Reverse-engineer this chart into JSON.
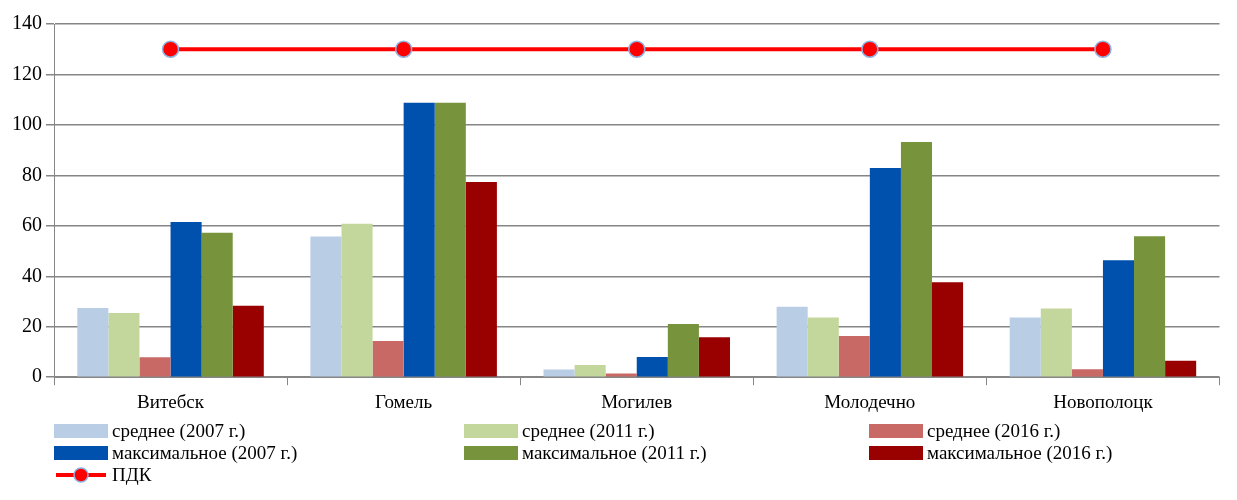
{
  "chart_data": {
    "type": "bar",
    "categories": [
      "Витебск",
      "Гомель",
      "Могилев",
      "Молодечно",
      "Новополоцк"
    ],
    "series": [
      {
        "name": "среднее (2007 г.)",
        "color": "#b9cde5",
        "values": [
          27.4,
          55.8,
          3.1,
          27.9,
          23.7
        ]
      },
      {
        "name": "среднее (2011 г.)",
        "color": "#c3d69b",
        "values": [
          25.4,
          60.8,
          4.8,
          23.7,
          27.2
        ]
      },
      {
        "name": "среднее (2016 г.)",
        "color": "#c96966",
        "values": [
          7.9,
          14.3,
          1.5,
          16.3,
          3.2
        ]
      },
      {
        "name": "максимальное (2007 г.)",
        "color": "#0050ae",
        "values": [
          61.5,
          108.8,
          8.0,
          82.9,
          46.4
        ]
      },
      {
        "name": "максимальное (2011 г.)",
        "color": "#77933c",
        "values": [
          57.3,
          108.8,
          21.1,
          93.2,
          55.9
        ]
      },
      {
        "name": "максимальное (2016 г.)",
        "color": "#990000",
        "values": [
          28.3,
          77.4,
          15.8,
          37.6,
          6.5
        ]
      },
      {
        "name": "ПДК",
        "type": "line",
        "color": "#ff0000",
        "values": [
          130,
          130,
          130,
          130,
          130
        ]
      }
    ],
    "ylim": [
      0,
      140
    ],
    "yticks": [
      0,
      20,
      40,
      60,
      80,
      100,
      120,
      140
    ],
    "grid": "y",
    "legend": "bottom",
    "marker": "circle"
  }
}
